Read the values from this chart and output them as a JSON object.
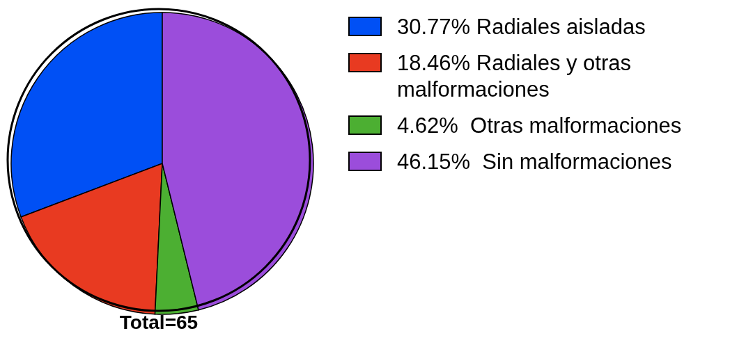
{
  "chart_data": {
    "type": "pie",
    "categories": [
      "30.77% Radiales aisladas",
      "18.46% Radiales y otras malformaciones",
      "4.62%  Otras malformaciones",
      "46.15%  Sin malformaciones"
    ],
    "values": [
      30.77,
      18.46,
      4.62,
      46.15
    ],
    "colors": [
      "#0050f5",
      "#e83a21",
      "#4caf32",
      "#9b4ddb"
    ],
    "legend": "top right",
    "annotations": [
      "Total=65"
    ]
  }
}
